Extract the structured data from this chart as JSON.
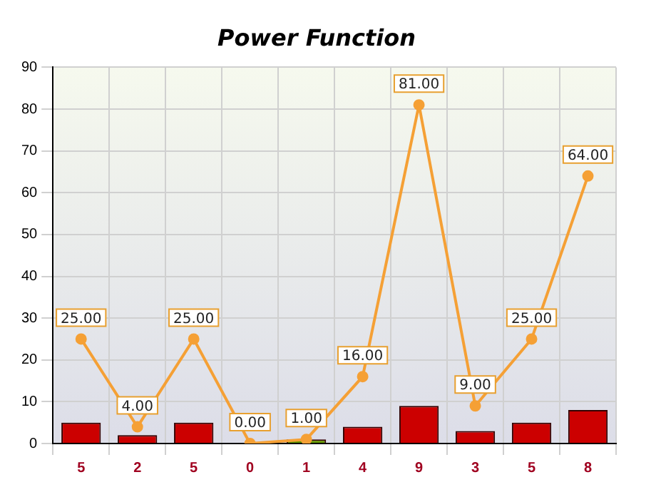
{
  "chart_data": {
    "type": "bar",
    "title": "Power Function",
    "categories": [
      "5",
      "2",
      "5",
      "0",
      "1",
      "4",
      "9",
      "3",
      "5",
      "8"
    ],
    "series": [
      {
        "colors": [
          "#cc0000",
          "#cc0000",
          "#cc0000",
          "#cc0000",
          "#669900",
          "#cc0000",
          "#cc0000",
          "#cc0000",
          "#cc0000",
          "#cc0000"
        ],
        "values": [
          5,
          2,
          5,
          0,
          1,
          4,
          9,
          3,
          5,
          8
        ]
      },
      {
        "type": "line",
        "color": "#f5a035",
        "values": [
          25,
          4,
          25,
          0,
          1,
          16,
          81,
          9,
          25,
          64
        ],
        "value_labels": [
          "25.00",
          "4.00",
          "25.00",
          "0.00",
          "1.00",
          "16.00",
          "81.00",
          "9.00",
          "25.00",
          "64.00"
        ]
      }
    ],
    "ylim": [
      0,
      90
    ],
    "yticks": [
      0,
      10,
      20,
      30,
      40,
      50,
      60,
      70,
      80,
      90
    ],
    "grid": true,
    "marker": "circle",
    "legend": false
  }
}
